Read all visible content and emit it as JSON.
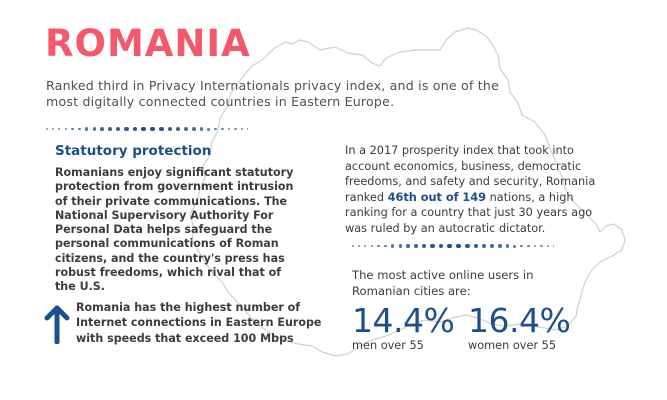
{
  "header": {
    "title": "ROMANIA",
    "subtitle": "Ranked third in Privacy Internationals privacy index, and is one of the most digitally connected countries in Eastern Europe."
  },
  "colors": {
    "title": "#f4596b",
    "accent_blue": "#1d4e89",
    "text": "#3c3c3c",
    "map_outline": "#cfcfcf"
  },
  "statutory": {
    "heading": "Statutory protection",
    "body": "Romanians enjoy significant statutory protection from government intrusion of their private communications. The National Supervisory Authority For Personal Data helps safeguard the personal communications of Roman citizens, and the country's press has robust freedoms, which rival that of the U.S."
  },
  "internet_fact": {
    "icon": "arrow-up-icon",
    "text": "Romania has the highest number of Internet connections in Eastern Europe with speeds that exceed 100 Mbps"
  },
  "prosperity": {
    "before": "In a 2017 prosperity index that took into account economics, business, democratic freedoms, and safety and security, Romania ranked ",
    "highlight": "46th out of 149",
    "after": " nations, a high ranking for a country that just 30 years ago was ruled by an autocratic dictator."
  },
  "online_users": {
    "intro": "The most active online users in Romanian cities are:",
    "stats": [
      {
        "value": "14.4%",
        "label": "men over 55"
      },
      {
        "value": "16.4%",
        "label": "women over 55"
      }
    ]
  }
}
